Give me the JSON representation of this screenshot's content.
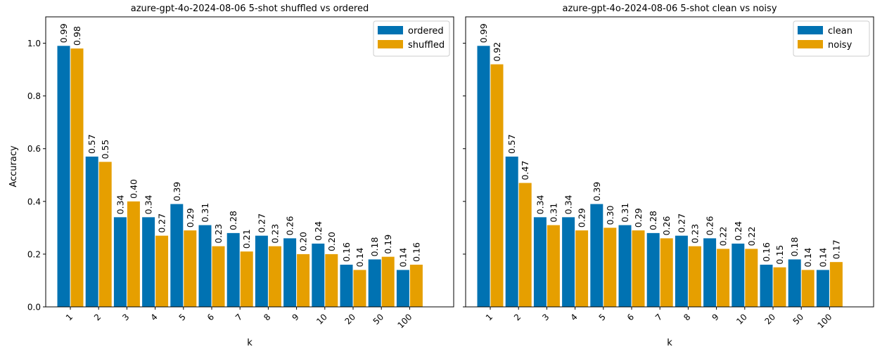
{
  "figure": {
    "ylabel": "Accuracy"
  },
  "chart_data": [
    {
      "type": "bar",
      "title": "azure-gpt-4o-2024-08-06 5-shot shuffled vs ordered",
      "xlabel": "k",
      "ylabel": "Accuracy",
      "ylim": [
        0,
        1.1
      ],
      "yticks": [
        "0.0",
        "0.2",
        "0.4",
        "0.6",
        "0.8",
        "1.0"
      ],
      "categories": [
        "1",
        "2",
        "3",
        "4",
        "5",
        "6",
        "7",
        "8",
        "9",
        "10",
        "20",
        "50",
        "100"
      ],
      "legend_position": "top-right",
      "grid": false,
      "series": [
        {
          "name": "ordered",
          "color": "#0072B2",
          "values": [
            0.99,
            0.57,
            0.34,
            0.34,
            0.39,
            0.31,
            0.28,
            0.27,
            0.26,
            0.24,
            0.16,
            0.18,
            0.14
          ],
          "labels": [
            "0.99",
            "0.57",
            "0.34",
            "0.34",
            "0.39",
            "0.31",
            "0.28",
            "0.27",
            "0.26",
            "0.24",
            "0.16",
            "0.18",
            "0.14"
          ]
        },
        {
          "name": "shuffled",
          "color": "#E69F00",
          "values": [
            0.98,
            0.55,
            0.4,
            0.27,
            0.29,
            0.23,
            0.21,
            0.23,
            0.2,
            0.2,
            0.14,
            0.19,
            0.16
          ],
          "labels": [
            "0.98",
            "0.55",
            "0.40",
            "0.27",
            "0.29",
            "0.23",
            "0.21",
            "0.23",
            "0.20",
            "0.20",
            "0.14",
            "0.19",
            "0.16"
          ]
        }
      ]
    },
    {
      "type": "bar",
      "title": "azure-gpt-4o-2024-08-06 5-shot clean vs noisy",
      "xlabel": "k",
      "ylabel": "",
      "ylim": [
        0,
        1.1
      ],
      "categories": [
        "1",
        "2",
        "3",
        "4",
        "5",
        "6",
        "7",
        "8",
        "9",
        "10",
        "20",
        "50",
        "100"
      ],
      "legend_position": "top-right",
      "grid": false,
      "shared_y": true,
      "series": [
        {
          "name": "clean",
          "color": "#0072B2",
          "values": [
            0.99,
            0.57,
            0.34,
            0.34,
            0.39,
            0.31,
            0.28,
            0.27,
            0.26,
            0.24,
            0.16,
            0.18,
            0.14
          ],
          "labels": [
            "0.99",
            "0.57",
            "0.34",
            "0.34",
            "0.39",
            "0.31",
            "0.28",
            "0.27",
            "0.26",
            "0.24",
            "0.16",
            "0.18",
            "0.14"
          ]
        },
        {
          "name": "noisy",
          "color": "#E69F00",
          "values": [
            0.92,
            0.47,
            0.31,
            0.29,
            0.3,
            0.29,
            0.26,
            0.23,
            0.22,
            0.22,
            0.15,
            0.14,
            0.17
          ],
          "labels": [
            "0.92",
            "0.47",
            "0.31",
            "0.29",
            "0.30",
            "0.29",
            "0.26",
            "0.23",
            "0.22",
            "0.22",
            "0.15",
            "0.14",
            "0.17"
          ]
        }
      ]
    }
  ]
}
